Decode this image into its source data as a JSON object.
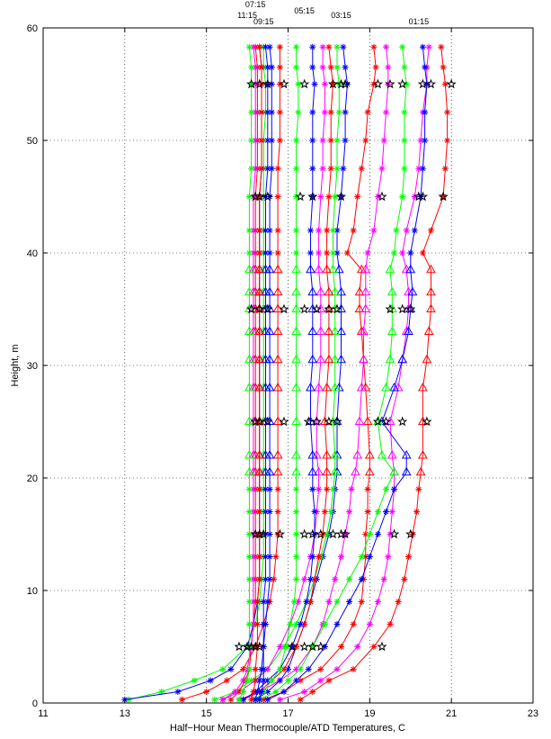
{
  "chart_data": {
    "type": "line",
    "title": "",
    "xlabel": "Half−Hour Mean Thermocouple/ATD Temperatures, C",
    "ylabel": "Height, m",
    "xlim": [
      11,
      23
    ],
    "ylim": [
      0,
      60
    ],
    "xticks": [
      11,
      13,
      15,
      17,
      19,
      21,
      23
    ],
    "yticks": [
      0,
      10,
      20,
      30,
      40,
      50,
      60
    ],
    "grid": true,
    "time_labels": [
      {
        "text": "07:15",
        "x": 16.2
      },
      {
        "text": "11:15",
        "x": 16.0
      },
      {
        "text": "09:15",
        "x": 16.4
      },
      {
        "text": "05:15",
        "x": 17.4
      },
      {
        "text": "03:15",
        "x": 18.3
      },
      {
        "text": "01:15",
        "x": 20.2
      }
    ],
    "heights": [
      0.3,
      1.0,
      2.0,
      3.0,
      5.0,
      7.0,
      9.0,
      11.0,
      13.0,
      15.0,
      17.0,
      19.0,
      20.5,
      22.0,
      25.0,
      28.0,
      30.5,
      33.0,
      35.0,
      36.5,
      38.5,
      40.0,
      42.0,
      45.0,
      47.5,
      50.0,
      52.5,
      55.0,
      56.5,
      58.3
    ],
    "series": [
      {
        "color": "#ff0000",
        "values": [
          17.3,
          17.6,
          18.0,
          18.6,
          19.1,
          19.5,
          19.7,
          19.85,
          19.95,
          20.05,
          20.15,
          20.2,
          20.25,
          20.3,
          20.3,
          20.3,
          20.4,
          20.45,
          20.5,
          20.5,
          20.5,
          20.3,
          20.5,
          20.8,
          20.85,
          20.9,
          20.9,
          20.85,
          20.8,
          20.75
        ]
      },
      {
        "color": "#ff0000",
        "values": [
          16.4,
          16.9,
          17.3,
          17.8,
          18.3,
          18.6,
          18.8,
          18.85,
          18.9,
          18.9,
          18.95,
          18.95,
          19.0,
          19.0,
          18.95,
          18.9,
          18.85,
          18.8,
          18.75,
          18.75,
          18.8,
          18.45,
          18.6,
          18.7,
          18.8,
          18.9,
          18.95,
          19.1,
          19.15,
          19.1
        ]
      },
      {
        "color": "#ff00ff",
        "values": [
          16.8,
          17.4,
          17.8,
          18.2,
          18.7,
          19.0,
          19.2,
          19.35,
          19.45,
          19.5,
          19.55,
          19.6,
          19.6,
          19.55,
          19.5,
          19.7,
          19.8,
          19.9,
          19.95,
          19.95,
          19.9,
          19.8,
          19.9,
          20.1,
          20.2,
          20.25,
          20.3,
          20.4,
          20.4,
          20.45
        ]
      },
      {
        "color": "#ff00ff",
        "values": [
          15.8,
          16.3,
          16.8,
          17.2,
          17.6,
          17.85,
          18.0,
          18.15,
          18.3,
          18.4,
          18.5,
          18.55,
          18.65,
          18.7,
          18.75,
          18.8,
          18.85,
          18.85,
          18.9,
          18.9,
          18.9,
          18.95,
          19.1,
          19.2,
          19.3,
          19.35,
          19.4,
          19.45,
          19.45,
          19.4
        ]
      },
      {
        "color": "#0000ff",
        "values": [
          16.5,
          16.9,
          17.2,
          17.5,
          17.9,
          18.2,
          18.5,
          18.8,
          19.0,
          19.2,
          19.4,
          19.6,
          19.9,
          19.9,
          19.3,
          19.6,
          19.8,
          19.95,
          20.0,
          20.05,
          20.0,
          20.0,
          20.1,
          20.25,
          20.3,
          20.35,
          20.35,
          20.4,
          20.35,
          20.3
        ]
      },
      {
        "color": "#00ff00",
        "values": [
          16.3,
          16.7,
          17.0,
          17.3,
          17.6,
          17.9,
          18.2,
          18.5,
          18.8,
          19.0,
          19.2,
          19.4,
          19.6,
          19.3,
          19.2,
          19.4,
          19.5,
          19.55,
          19.55,
          19.55,
          19.5,
          19.6,
          19.65,
          19.8,
          19.85,
          19.85,
          19.85,
          19.9,
          19.85,
          19.8
        ]
      },
      {
        "color": "#0000ff",
        "values": [
          16.2,
          16.5,
          16.8,
          17.0,
          17.2,
          17.4,
          17.55,
          17.7,
          17.85,
          18.0,
          18.1,
          18.15,
          18.2,
          18.2,
          18.2,
          18.25,
          18.3,
          18.3,
          18.3,
          18.3,
          18.25,
          18.2,
          18.2,
          18.3,
          18.35,
          18.4,
          18.4,
          18.45,
          18.4,
          18.35
        ]
      },
      {
        "color": "#00ff00",
        "values": [
          15.2,
          15.7,
          16.1,
          16.5,
          16.9,
          17.2,
          17.45,
          17.65,
          17.8,
          17.95,
          18.05,
          18.1,
          18.15,
          18.15,
          18.1,
          18.15,
          18.15,
          18.15,
          18.15,
          18.15,
          18.1,
          18.1,
          18.1,
          18.15,
          18.2,
          18.2,
          18.25,
          18.25,
          18.2,
          18.2
        ]
      },
      {
        "color": "#ff0000",
        "values": [
          15.9,
          16.3,
          16.6,
          16.9,
          17.2,
          17.4,
          17.55,
          17.65,
          17.75,
          17.85,
          17.9,
          17.95,
          17.95,
          17.95,
          17.9,
          17.95,
          18.0,
          18.0,
          18.0,
          18.0,
          17.95,
          17.95,
          17.95,
          18.0,
          18.05,
          18.05,
          18.05,
          18.1,
          18.05,
          18.0
        ]
      },
      {
        "color": "#ff00ff",
        "values": [
          15.4,
          15.8,
          16.2,
          16.5,
          16.8,
          17.05,
          17.25,
          17.4,
          17.55,
          17.65,
          17.7,
          17.75,
          17.75,
          17.7,
          17.7,
          17.75,
          17.8,
          17.8,
          17.8,
          17.8,
          17.75,
          17.75,
          17.75,
          17.8,
          17.85,
          17.85,
          17.9,
          17.9,
          17.85,
          17.85
        ]
      },
      {
        "color": "#0000ff",
        "values": [
          15.9,
          16.2,
          16.5,
          16.8,
          17.1,
          17.3,
          17.45,
          17.55,
          17.6,
          17.65,
          17.65,
          17.6,
          17.6,
          17.6,
          17.55,
          17.55,
          17.6,
          17.6,
          17.6,
          17.6,
          17.55,
          17.55,
          17.55,
          17.6,
          17.6,
          17.6,
          17.6,
          17.65,
          17.6,
          17.6
        ]
      },
      {
        "color": "#00ff00",
        "values": [
          16.2,
          16.4,
          16.6,
          16.8,
          16.95,
          17.05,
          17.15,
          17.2,
          17.2,
          17.2,
          17.2,
          17.2,
          17.2,
          17.2,
          17.2,
          17.2,
          17.2,
          17.2,
          17.2,
          17.2,
          17.2,
          17.2,
          17.2,
          17.2,
          17.2,
          17.2,
          17.25,
          17.25,
          17.2,
          17.2
        ]
      },
      {
        "color": "#ff0000",
        "values": [
          14.4,
          15.0,
          15.5,
          15.9,
          16.2,
          16.4,
          16.55,
          16.65,
          16.7,
          16.75,
          16.75,
          16.75,
          16.75,
          16.75,
          16.75,
          16.75,
          16.75,
          16.75,
          16.75,
          16.75,
          16.75,
          16.75,
          16.75,
          16.75,
          16.75,
          16.8,
          16.8,
          16.8,
          16.8,
          16.8
        ]
      },
      {
        "color": "#00ff00",
        "values": [
          13.1,
          13.9,
          14.7,
          15.4,
          16.0,
          16.2,
          16.3,
          16.35,
          16.4,
          16.4,
          16.4,
          16.4,
          16.4,
          16.4,
          16.4,
          16.4,
          16.4,
          16.4,
          16.4,
          16.4,
          16.4,
          16.4,
          16.4,
          16.4,
          16.4,
          16.4,
          16.45,
          16.45,
          16.4,
          16.4
        ]
      },
      {
        "color": "#0000ff",
        "values": [
          13.0,
          14.3,
          15.1,
          15.6,
          16.0,
          16.15,
          16.25,
          16.3,
          16.3,
          16.3,
          16.3,
          16.3,
          16.3,
          16.3,
          16.3,
          16.3,
          16.3,
          16.3,
          16.3,
          16.3,
          16.3,
          16.3,
          16.3,
          16.3,
          16.35,
          16.35,
          16.35,
          16.35,
          16.35,
          16.3
        ]
      },
      {
        "color": "#ff0000",
        "values": [
          15.6,
          15.8,
          15.95,
          16.05,
          16.1,
          16.15,
          16.2,
          16.2,
          16.2,
          16.2,
          16.2,
          16.2,
          16.2,
          16.2,
          16.2,
          16.2,
          16.2,
          16.2,
          16.2,
          16.2,
          16.2,
          16.2,
          16.2,
          16.2,
          16.25,
          16.25,
          16.25,
          16.25,
          16.25,
          16.2
        ]
      },
      {
        "color": "#ff00ff",
        "values": [
          15.4,
          15.7,
          15.9,
          16.0,
          16.1,
          16.15,
          16.15,
          16.15,
          16.15,
          16.15,
          16.15,
          16.15,
          16.15,
          16.15,
          16.15,
          16.15,
          16.15,
          16.15,
          16.15,
          16.15,
          16.15,
          16.15,
          16.15,
          16.15,
          16.2,
          16.2,
          16.2,
          16.2,
          16.2,
          16.15
        ]
      },
      {
        "color": "#00ff00",
        "values": [
          15.8,
          15.9,
          16.0,
          16.05,
          16.05,
          16.05,
          16.05,
          16.05,
          16.05,
          16.05,
          16.05,
          16.05,
          16.05,
          16.05,
          16.05,
          16.05,
          16.05,
          16.05,
          16.05,
          16.05,
          16.05,
          16.05,
          16.05,
          16.05,
          16.1,
          16.1,
          16.1,
          16.1,
          16.1,
          16.05
        ]
      },
      {
        "color": "#0000ff",
        "values": [
          16.3,
          16.35,
          16.4,
          16.4,
          16.4,
          16.4,
          16.4,
          16.45,
          16.45,
          16.45,
          16.45,
          16.45,
          16.45,
          16.45,
          16.45,
          16.45,
          16.45,
          16.45,
          16.45,
          16.45,
          16.45,
          16.45,
          16.45,
          16.45,
          16.5,
          16.5,
          16.5,
          16.5,
          16.5,
          16.45
        ]
      },
      {
        "color": "#ff0000",
        "values": [
          16.1,
          16.15,
          16.2,
          16.2,
          16.25,
          16.25,
          16.25,
          16.3,
          16.3,
          16.3,
          16.3,
          16.3,
          16.3,
          16.3,
          16.3,
          16.3,
          16.3,
          16.3,
          16.3,
          16.3,
          16.3,
          16.3,
          16.3,
          16.3,
          16.35,
          16.35,
          16.35,
          16.35,
          16.35,
          16.3
        ]
      },
      {
        "color": "#0000ff",
        "values": [
          16.2,
          16.25,
          16.3,
          16.35,
          16.4,
          16.45,
          16.5,
          16.55,
          16.55,
          16.55,
          16.55,
          16.55,
          16.55,
          16.55,
          16.55,
          16.55,
          16.55,
          16.55,
          16.55,
          16.55,
          16.55,
          16.55,
          16.55,
          16.55,
          16.6,
          16.6,
          16.6,
          16.6,
          16.6,
          16.55
        ]
      }
    ],
    "atd_stars": [
      {
        "height": 5,
        "x": [
          15.8,
          16.0,
          16.1,
          16.2,
          16.3,
          17.1,
          17.4,
          17.6,
          17.8,
          19.3
        ]
      },
      {
        "height": 15,
        "x": [
          16.2,
          16.3,
          16.4,
          16.8,
          17.4,
          17.6,
          17.8,
          18.1,
          18.3,
          18.4,
          19.6,
          20.0
        ]
      },
      {
        "height": 25,
        "x": [
          16.2,
          16.3,
          16.5,
          16.9,
          17.5,
          17.7,
          18.0,
          18.2,
          19.2,
          19.4,
          19.8,
          20.4
        ]
      },
      {
        "height": 35,
        "x": [
          16.1,
          16.3,
          16.5,
          16.9,
          17.4,
          17.7,
          18.0,
          18.2,
          19.5,
          19.8,
          20.0
        ]
      },
      {
        "height": 45,
        "x": [
          16.2,
          16.3,
          16.5,
          17.3,
          17.6,
          18.3,
          19.3,
          20.2,
          20.3,
          20.8
        ]
      },
      {
        "height": 55,
        "x": [
          16.1,
          16.3,
          16.5,
          16.9,
          17.4,
          18.1,
          18.3,
          18.4,
          19.2,
          19.5,
          19.8,
          20.3,
          20.5,
          21.0
        ]
      }
    ],
    "triangle_heights": [
      20.5,
      22.0,
      25.0,
      28.0,
      30.5,
      33.0,
      35.0,
      36.5,
      38.5
    ]
  }
}
